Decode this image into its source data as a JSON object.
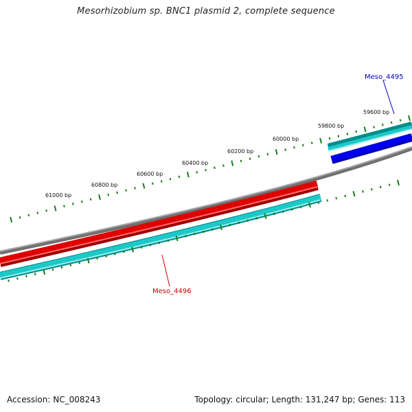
{
  "title": "Mesorhizobium sp. BNC1 plasmid 2, complete sequence",
  "footer": {
    "accession": "Accession: NC_008243",
    "summary": "Topology: circular; Length: 131,247 bp; Genes: 113"
  },
  "colors": {
    "backbone": "#808080",
    "forward_cds": "#1ec8c8",
    "gene_red": "#e00000",
    "gene_blue": "#0000e6",
    "ticks": "#1a7a1a",
    "label_red": "#cc0000",
    "label_blue": "#0000cc"
  },
  "scale": {
    "ticks": [
      {
        "label": "59600 bp"
      },
      {
        "label": "59800 bp"
      },
      {
        "label": "60000 bp"
      },
      {
        "label": "60200 bp"
      },
      {
        "label": "60400 bp"
      },
      {
        "label": "60600 bp"
      },
      {
        "label": "60800 bp"
      },
      {
        "label": "61000 bp"
      }
    ]
  },
  "genes": [
    {
      "name": "Meso_4495",
      "strand": "reverse",
      "color": "blue"
    },
    {
      "name": "Meso_4496",
      "strand": "forward",
      "color": "red"
    }
  ]
}
